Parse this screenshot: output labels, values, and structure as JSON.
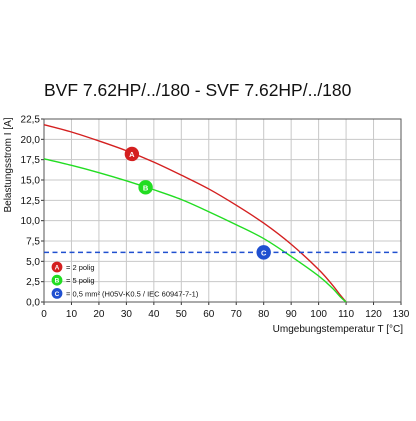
{
  "chart_data": {
    "type": "line",
    "title": "BVF 7.62HP/../180 - SVF 7.62HP/../180",
    "xlabel": "Umgebungstemperatur T [°C]",
    "ylabel": "Belastungsstrom I [A]",
    "xlim": [
      0,
      130
    ],
    "ylim": [
      0,
      22.5
    ],
    "x_ticks": [
      "0",
      "10",
      "20",
      "30",
      "40",
      "50",
      "60",
      "70",
      "80",
      "90",
      "100",
      "110",
      "120",
      "130"
    ],
    "y_ticks": [
      "0,0",
      "2,5",
      "5,0",
      "7,5",
      "10,0",
      "12,5",
      "15,0",
      "17,5",
      "20,0",
      "22,5"
    ],
    "grid": true,
    "legend_position": "bottom-left",
    "series": [
      {
        "name": "= 2 polig",
        "marker": "A",
        "color": "#d42020",
        "style": "solid",
        "points": [
          [
            0,
            21.8
          ],
          [
            10,
            20.9
          ],
          [
            20,
            19.8
          ],
          [
            30,
            18.6
          ],
          [
            40,
            17.2
          ],
          [
            50,
            15.6
          ],
          [
            60,
            13.9
          ],
          [
            70,
            11.9
          ],
          [
            80,
            9.7
          ],
          [
            90,
            7.1
          ],
          [
            100,
            4.0
          ],
          [
            105,
            2.1
          ],
          [
            108,
            0.8
          ],
          [
            110,
            0.0
          ]
        ],
        "label_at": [
          32,
          18.2
        ]
      },
      {
        "name": "= 5 polig",
        "marker": "B",
        "color": "#22dd22",
        "style": "solid",
        "points": [
          [
            0,
            17.6
          ],
          [
            10,
            16.8
          ],
          [
            20,
            15.9
          ],
          [
            30,
            14.9
          ],
          [
            40,
            13.8
          ],
          [
            50,
            12.6
          ],
          [
            60,
            11.1
          ],
          [
            70,
            9.5
          ],
          [
            80,
            7.8
          ],
          [
            90,
            5.6
          ],
          [
            100,
            3.2
          ],
          [
            105,
            1.7
          ],
          [
            108,
            0.6
          ],
          [
            110,
            0.0
          ]
        ],
        "label_at": [
          37,
          14.1
        ]
      },
      {
        "name": "= 0,5 mm² (H05V-K0.5 / IEC 60947-7-1)",
        "marker": "C",
        "color": "#2050d0",
        "style": "dashed",
        "points": [
          [
            0,
            6.1
          ],
          [
            130,
            6.1
          ]
        ],
        "label_at": [
          80,
          6.1
        ]
      }
    ]
  }
}
